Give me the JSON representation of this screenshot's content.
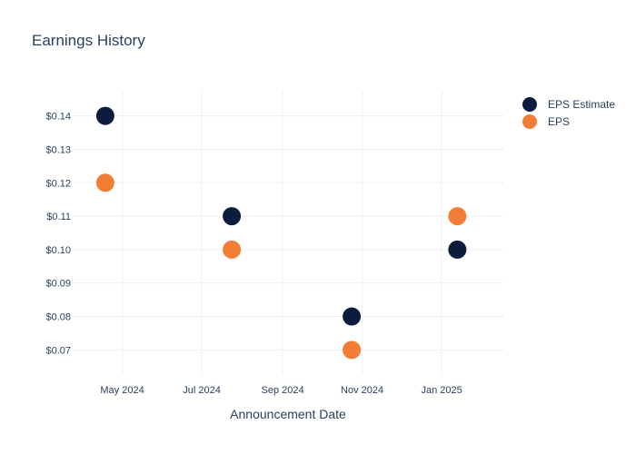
{
  "chart_data": {
    "type": "scatter",
    "title": "Earnings History",
    "xlabel": "Announcement Date",
    "ylabel": "",
    "x_axis_type": "date",
    "x_ticks": [
      {
        "date": "2024-05-01",
        "label": "May 2024"
      },
      {
        "date": "2024-07-01",
        "label": "Jul 2024"
      },
      {
        "date": "2024-09-01",
        "label": "Sep 2024"
      },
      {
        "date": "2024-11-01",
        "label": "Nov 2024"
      },
      {
        "date": "2025-01-01",
        "label": "Jan 2025"
      }
    ],
    "y_ticks": [
      {
        "value": 0.07,
        "label": "$0.07"
      },
      {
        "value": 0.08,
        "label": "$0.08"
      },
      {
        "value": 0.09,
        "label": "$0.09"
      },
      {
        "value": 0.1,
        "label": "$0.10"
      },
      {
        "value": 0.11,
        "label": "$0.11"
      },
      {
        "value": 0.12,
        "label": "$0.12"
      },
      {
        "value": 0.13,
        "label": "$0.13"
      },
      {
        "value": 0.14,
        "label": "$0.14"
      }
    ],
    "ylim": [
      0.0625,
      0.1475
    ],
    "xlim": [
      "2024-03-24",
      "2025-02-18"
    ],
    "grid": true,
    "legend_position": "top-right",
    "series": [
      {
        "name": "EPS Estimate",
        "color": "#0b1c3d",
        "points": [
          {
            "x": "2024-04-18",
            "y": 0.14
          },
          {
            "x": "2024-07-24",
            "y": 0.11
          },
          {
            "x": "2024-10-24",
            "y": 0.08
          },
          {
            "x": "2025-01-13",
            "y": 0.1
          }
        ]
      },
      {
        "name": "EPS",
        "color": "#f47d36",
        "points": [
          {
            "x": "2024-04-18",
            "y": 0.12
          },
          {
            "x": "2024-07-24",
            "y": 0.1
          },
          {
            "x": "2024-10-24",
            "y": 0.07
          },
          {
            "x": "2025-01-13",
            "y": 0.11
          }
        ]
      }
    ]
  }
}
